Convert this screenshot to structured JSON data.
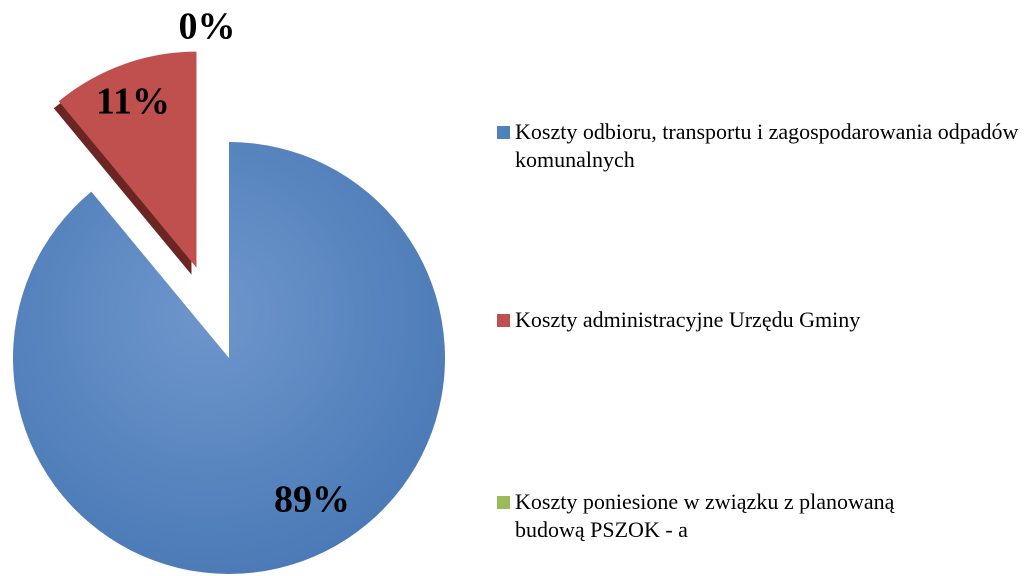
{
  "chart_data": {
    "type": "pie",
    "categories": [
      "Koszty odbioru, transportu i zagospodarowania odpadów komunalnych",
      "Koszty administracyjne Urzędu Gminy",
      "Koszty poniesione w związku z planowaną budową PSZOK - a"
    ],
    "values": [
      89,
      11,
      0
    ],
    "value_labels": [
      "89%",
      "11%",
      "0%"
    ],
    "colors": [
      "#4f81bd",
      "#c0504d",
      "#9bbb59"
    ],
    "legend": "right"
  }
}
